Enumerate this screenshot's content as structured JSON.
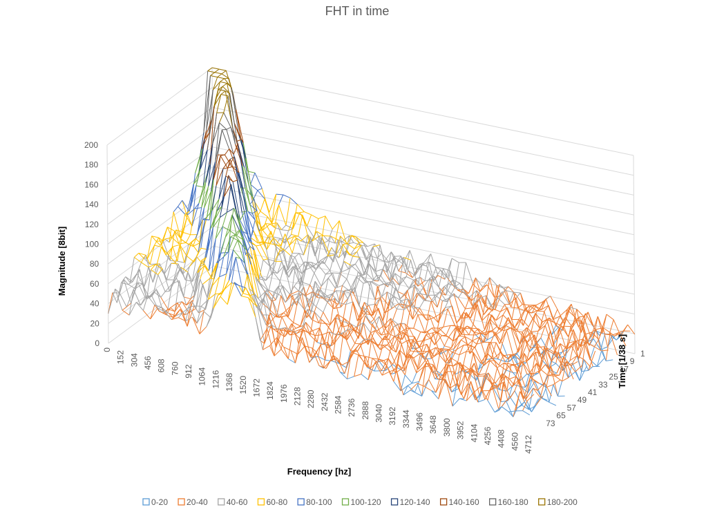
{
  "chart_data": {
    "type": "surface",
    "title": "FHT in time",
    "xlabel": "Frequency [hz]",
    "ylabel": "Time [1/38 s]",
    "zlabel": "Magnitude [8bit]",
    "zlim": [
      0,
      200
    ],
    "z_ticks": [
      0,
      20,
      40,
      60,
      80,
      100,
      120,
      140,
      160,
      180,
      200
    ],
    "x_ticks": [
      0,
      152,
      304,
      456,
      608,
      760,
      912,
      1064,
      1216,
      1368,
      1520,
      1672,
      1824,
      1976,
      2128,
      2280,
      2432,
      2584,
      2736,
      2888,
      3040,
      3192,
      3344,
      3496,
      3648,
      3800,
      3952,
      4104,
      4256,
      4408,
      4560,
      4712
    ],
    "y_ticks": [
      1,
      9,
      17,
      25,
      33,
      41,
      49,
      57,
      65,
      73
    ],
    "legend_position": "bottom",
    "bands": [
      {
        "name": "0-20",
        "color": "#5B9BD5"
      },
      {
        "name": "20-40",
        "color": "#ED7D31"
      },
      {
        "name": "40-60",
        "color": "#A5A5A5"
      },
      {
        "name": "60-80",
        "color": "#FFC000"
      },
      {
        "name": "80-100",
        "color": "#4472C4"
      },
      {
        "name": "100-120",
        "color": "#70AD47"
      },
      {
        "name": "120-140",
        "color": "#264478"
      },
      {
        "name": "140-160",
        "color": "#9E480E"
      },
      {
        "name": "160-180",
        "color": "#636363"
      },
      {
        "name": "180-200",
        "color": "#997300"
      }
    ],
    "grid": true
  }
}
